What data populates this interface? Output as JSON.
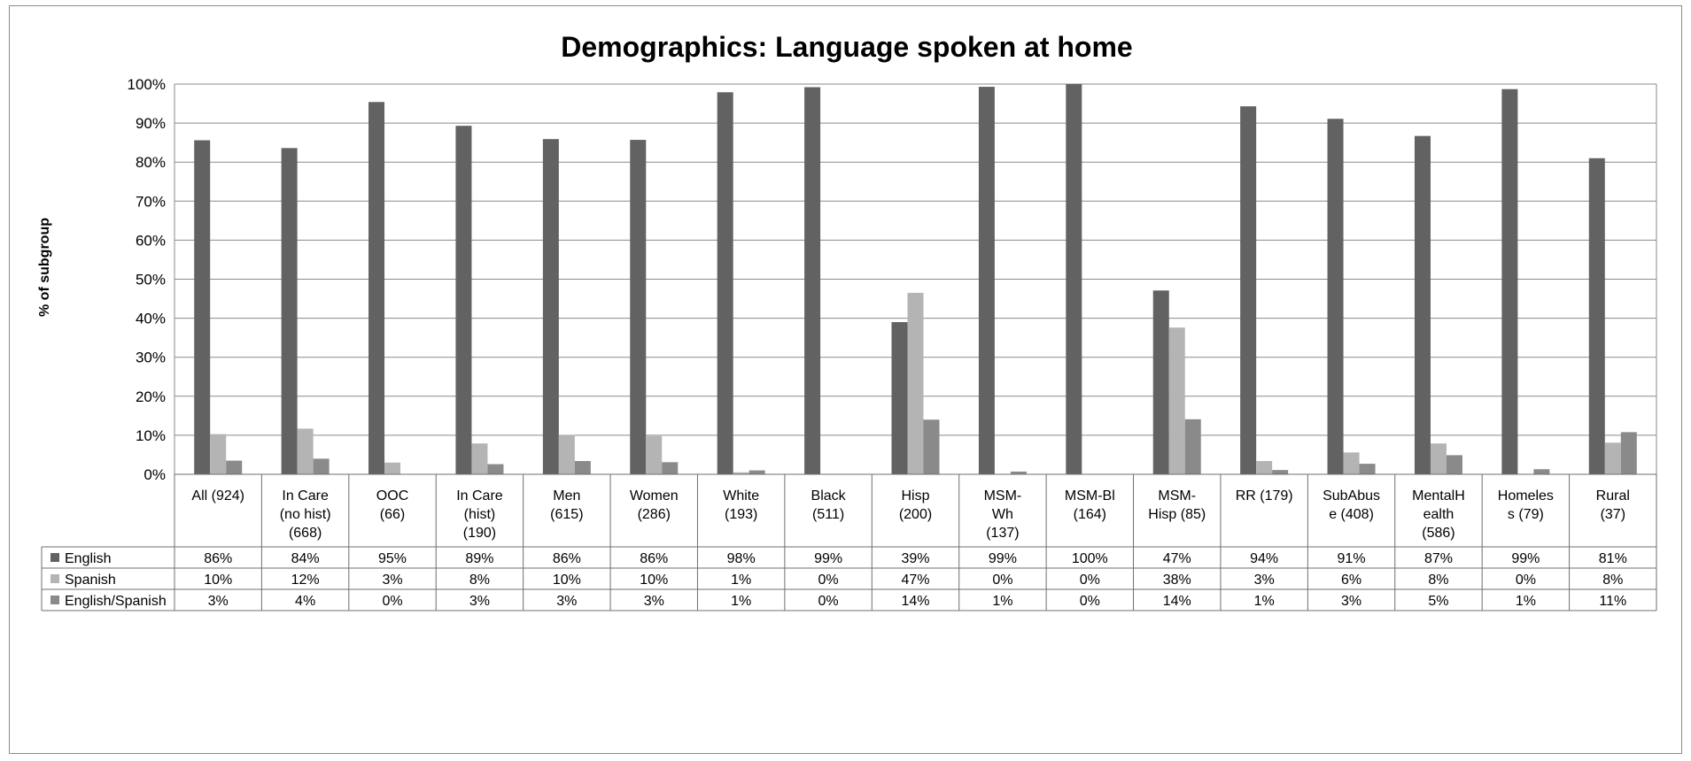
{
  "chart_data": {
    "type": "bar",
    "title": "Demographics: Language spoken at home",
    "ylabel": "% of subgroup",
    "xlabel": "",
    "ylim": [
      0,
      100
    ],
    "y_tick_step": 10,
    "y_tick_suffix": "%",
    "grid": true,
    "legend": "data table below chart",
    "categories": [
      "All (924)",
      "In Care (no hist) (668)",
      "OOC (66)",
      "In Care (hist) (190)",
      "Men (615)",
      "Women (286)",
      "White (193)",
      "Black (511)",
      "Hisp (200)",
      "MSM-Wh (137)",
      "MSM-Bl (164)",
      "MSM-Hisp (85)",
      "RR (179)",
      "SubAbuse (408)",
      "MentalHealth (586)",
      "Homeless (79)",
      "Rural (37)"
    ],
    "category_label_lines": [
      [
        "All (924)"
      ],
      [
        "In Care",
        "(no hist)",
        "(668)"
      ],
      [
        "OOC",
        "(66)"
      ],
      [
        "In Care",
        "(hist)",
        "(190)"
      ],
      [
        "Men",
        "(615)"
      ],
      [
        "Women",
        "(286)"
      ],
      [
        "White",
        "(193)"
      ],
      [
        "Black",
        "(511)"
      ],
      [
        "Hisp",
        "(200)"
      ],
      [
        "MSM-",
        "Wh",
        "(137)"
      ],
      [
        "MSM-Bl",
        "(164)"
      ],
      [
        "MSM-",
        "Hisp (85)"
      ],
      [
        "RR (179)"
      ],
      [
        "SubAbus",
        "e (408)"
      ],
      [
        "MentalH",
        "ealth",
        "(586)"
      ],
      [
        "Homeles",
        "s (79)"
      ],
      [
        "Rural",
        "(37)"
      ]
    ],
    "series": [
      {
        "name": "English",
        "color": "#626262",
        "values": [
          85.6,
          83.6,
          95.4,
          89.3,
          85.9,
          85.7,
          97.9,
          99.2,
          39.0,
          99.3,
          100,
          47.1,
          94.3,
          91.1,
          86.7,
          98.7,
          81.0
        ],
        "labels": [
          "86%",
          "84%",
          "95%",
          "89%",
          "86%",
          "86%",
          "98%",
          "99%",
          "39%",
          "99%",
          "100%",
          "47%",
          "94%",
          "91%",
          "87%",
          "99%",
          "81%"
        ]
      },
      {
        "name": "Spanish",
        "color": "#b4b4b4",
        "values": [
          10.3,
          11.7,
          3.0,
          7.9,
          10.1,
          9.8,
          0.5,
          0.0,
          46.5,
          0.0,
          0.0,
          37.6,
          3.4,
          5.6,
          7.9,
          0.0,
          8.1
        ],
        "labels": [
          "10%",
          "12%",
          "3%",
          "8%",
          "10%",
          "10%",
          "1%",
          "0%",
          "47%",
          "0%",
          "0%",
          "38%",
          "3%",
          "6%",
          "8%",
          "0%",
          "8%"
        ]
      },
      {
        "name": "English/Spanish",
        "color": "#8a8a8a",
        "values": [
          3.5,
          4.0,
          0.0,
          2.6,
          3.4,
          3.1,
          1.0,
          0.0,
          14.0,
          0.7,
          0.0,
          14.1,
          1.1,
          2.7,
          4.9,
          1.3,
          10.8
        ],
        "labels": [
          "3%",
          "4%",
          "0%",
          "3%",
          "3%",
          "3%",
          "1%",
          "0%",
          "14%",
          "1%",
          "0%",
          "14%",
          "1%",
          "3%",
          "5%",
          "1%",
          "11%"
        ]
      }
    ]
  }
}
